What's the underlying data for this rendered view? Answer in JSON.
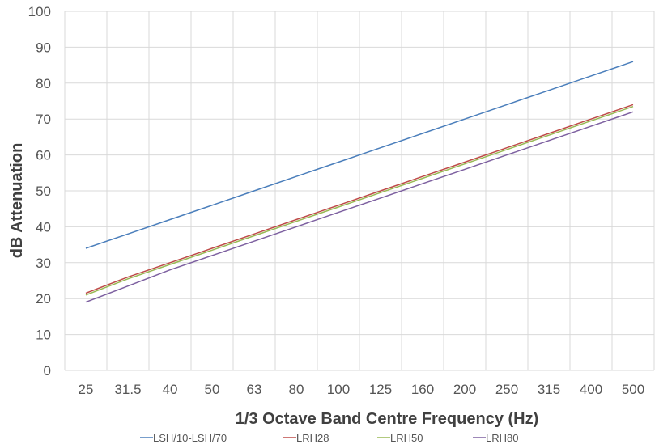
{
  "chart_data": {
    "type": "line",
    "title": "",
    "xlabel": "1/3 Octave Band Centre Frequency (Hz)",
    "ylabel": "dB Attenuation",
    "categories": [
      "25",
      "31.5",
      "40",
      "50",
      "63",
      "80",
      "100",
      "125",
      "160",
      "200",
      "250",
      "315",
      "400",
      "500"
    ],
    "ylim": [
      0,
      100
    ],
    "yticks": [
      "0",
      "10",
      "20",
      "30",
      "40",
      "50",
      "60",
      "70",
      "80",
      "90",
      "100"
    ],
    "grid": true,
    "legend_position": "bottom",
    "series": [
      {
        "name": "LSH/10-LSH/70",
        "color": "#4a7ebb",
        "values": [
          34,
          38,
          42,
          46,
          50,
          54,
          58,
          62,
          66,
          70,
          74,
          78,
          82,
          86
        ]
      },
      {
        "name": "LRH28",
        "color": "#be4b48",
        "values": [
          21.5,
          26,
          30,
          34,
          38,
          42,
          46,
          50,
          54,
          58,
          62,
          66,
          70,
          74
        ]
      },
      {
        "name": "LRH50",
        "color": "#98b954",
        "values": [
          21,
          25.5,
          29.5,
          33.5,
          37.5,
          41.5,
          45.5,
          49.5,
          53.5,
          57.5,
          61.5,
          65.5,
          69.5,
          73.5
        ]
      },
      {
        "name": "LRH80",
        "color": "#7d60a0",
        "values": [
          19,
          23.5,
          28,
          32,
          36,
          40,
          44,
          48,
          52,
          56,
          60,
          64,
          68,
          72
        ]
      }
    ]
  }
}
